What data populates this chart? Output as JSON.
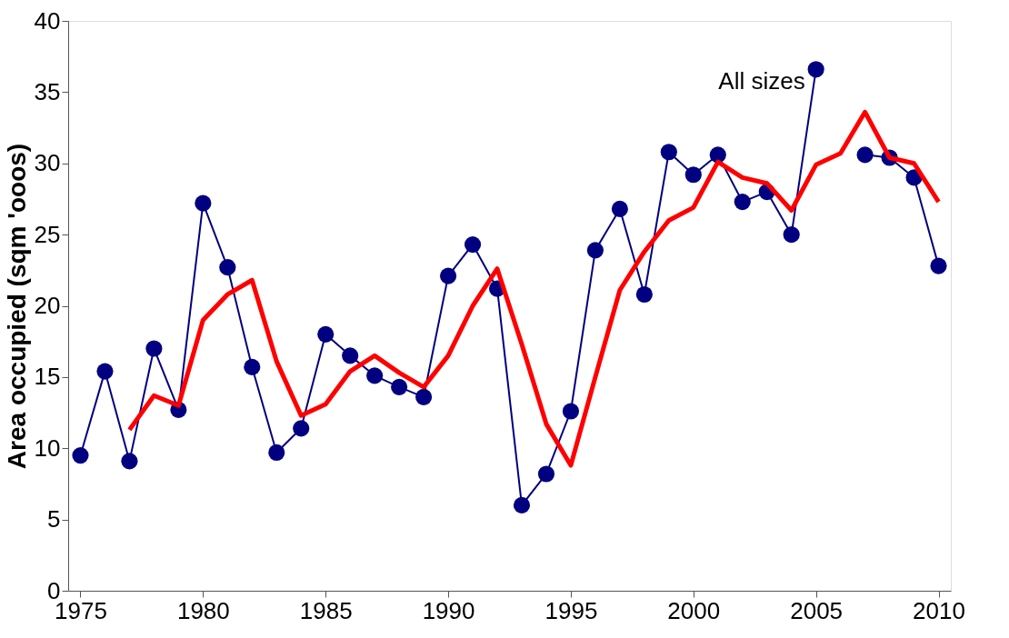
{
  "chart_data": {
    "type": "line",
    "ylabel": "Area occupied (sqm 'ooos)",
    "x": [
      1975,
      1976,
      1977,
      1978,
      1979,
      1980,
      1981,
      1982,
      1983,
      1984,
      1985,
      1986,
      1987,
      1988,
      1989,
      1990,
      1991,
      1992,
      1993,
      1994,
      1995,
      1996,
      1997,
      1998,
      1999,
      2000,
      2001,
      2002,
      2003,
      2004,
      2005,
      2006,
      2007,
      2008,
      2009,
      2010
    ],
    "series": [
      {
        "name": "All sizes",
        "color": "#000080",
        "marker": "circle",
        "line_style": "solid",
        "values": [
          9.5,
          15.4,
          9.1,
          17.0,
          12.7,
          27.2,
          22.7,
          15.7,
          9.7,
          11.4,
          18.0,
          16.5,
          15.1,
          14.3,
          13.6,
          22.1,
          24.3,
          21.2,
          6.0,
          8.2,
          12.6,
          23.9,
          26.8,
          20.8,
          30.8,
          29.2,
          30.6,
          27.3,
          28.0,
          25.0,
          36.6,
          null,
          30.6,
          30.4,
          29.0,
          22.8
        ]
      },
      {
        "color": "#ff0000",
        "marker": "none",
        "line_style": "solid",
        "values": [
          null,
          null,
          11.3,
          13.7,
          13.0,
          19.0,
          20.8,
          21.8,
          16.1,
          12.3,
          13.1,
          15.4,
          16.5,
          15.3,
          14.3,
          16.5,
          20.0,
          22.6,
          17.3,
          11.7,
          8.8,
          15.0,
          21.1,
          23.8,
          26.0,
          26.9,
          30.1,
          29.0,
          28.6,
          26.7,
          29.9,
          30.7,
          33.6,
          30.4,
          30.0,
          27.3
        ]
      }
    ],
    "xlim": [
      1974.5,
      2010.5
    ],
    "xticks": [
      1975,
      1980,
      1985,
      1990,
      1995,
      2000,
      2005,
      2010
    ],
    "ylim": [
      0,
      40
    ],
    "yticks": [
      0,
      5,
      10,
      15,
      20,
      25,
      30,
      35,
      40
    ],
    "grid": false,
    "legend": false
  }
}
